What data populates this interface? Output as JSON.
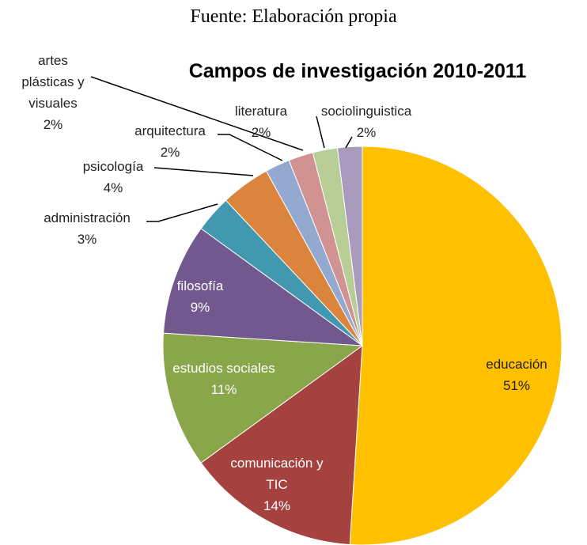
{
  "chart_data": {
    "type": "pie",
    "subtitle": "Fuente: Elaboración propia",
    "title": "Campos de investigación 2010-2011",
    "categories": [
      "educación",
      "comunicación y TIC",
      "estudios sociales",
      "filosofía",
      "administración",
      "psicología",
      "arquitectura",
      "artes plásticas y visuales",
      "literatura",
      "sociolinguistica"
    ],
    "values": [
      51,
      14,
      11,
      9,
      3,
      4,
      2,
      2,
      2,
      2
    ],
    "value_labels": [
      "51%",
      "14%",
      "11%",
      "9%",
      "3%",
      "4%",
      "2%",
      "2%",
      "2%",
      "2%"
    ],
    "colors": [
      "#ffc000",
      "#a5423f",
      "#8aa64b",
      "#71588f",
      "#4198af",
      "#db843d",
      "#93a9cf",
      "#d19392",
      "#b9cd96",
      "#a99bbd"
    ]
  }
}
